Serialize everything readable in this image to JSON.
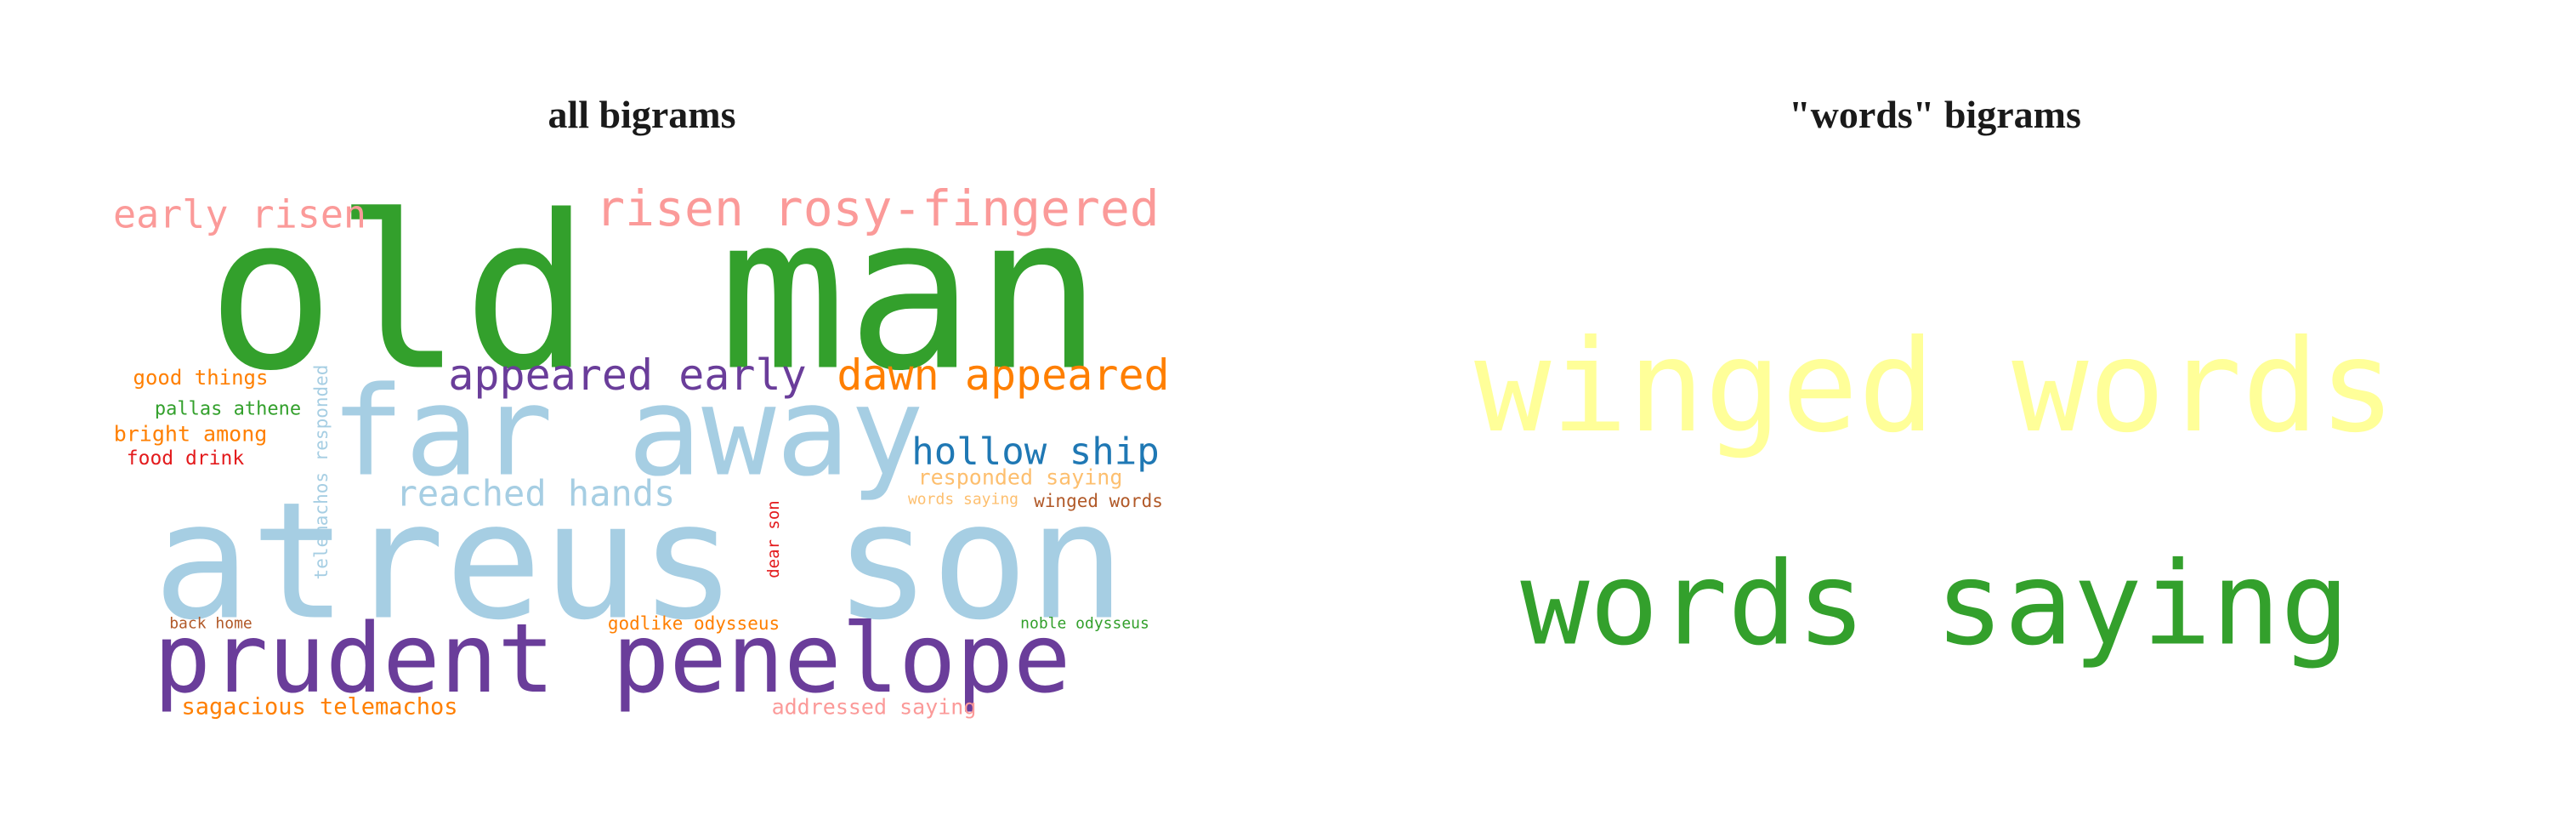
{
  "chart_data": [
    {
      "type": "wordcloud",
      "title": "all bigrams",
      "words": [
        {
          "text": "old man",
          "color": "#33a02c"
        },
        {
          "text": "atreus son",
          "color": "#a6cee3"
        },
        {
          "text": "far away",
          "color": "#a6cee3"
        },
        {
          "text": "prudent penelope",
          "color": "#6a3d9a"
        },
        {
          "text": "risen rosy-fingered",
          "color": "#fb9a99"
        },
        {
          "text": "early risen",
          "color": "#fb9a99"
        },
        {
          "text": "appeared early",
          "color": "#6a3d9a"
        },
        {
          "text": "dawn appeared",
          "color": "#ff7f00"
        },
        {
          "text": "hollow ship",
          "color": "#1f78b4"
        },
        {
          "text": "reached hands",
          "color": "#a6cee3"
        },
        {
          "text": "good things",
          "color": "#ff7f00"
        },
        {
          "text": "pallas athene",
          "color": "#33a02c"
        },
        {
          "text": "bright among",
          "color": "#ff7f00"
        },
        {
          "text": "food drink",
          "color": "#e31a1c"
        },
        {
          "text": "telemachos responded",
          "color": "#a6cee3"
        },
        {
          "text": "responded saying",
          "color": "#fdbf6f"
        },
        {
          "text": "words saying",
          "color": "#fdbf6f"
        },
        {
          "text": "winged words",
          "color": "#b15928"
        },
        {
          "text": "dear son",
          "color": "#e31a1c"
        },
        {
          "text": "back home",
          "color": "#b15928"
        },
        {
          "text": "godlike odysseus",
          "color": "#ff7f00"
        },
        {
          "text": "noble odysseus",
          "color": "#33a02c"
        },
        {
          "text": "sagacious telemachos",
          "color": "#ff7f00"
        },
        {
          "text": "addressed saying",
          "color": "#fb9a99"
        }
      ]
    },
    {
      "type": "wordcloud",
      "title": "\"words\" bigrams",
      "words": [
        {
          "text": "winged words",
          "color": "#ffff99"
        },
        {
          "text": "words saying",
          "color": "#33a02c"
        }
      ]
    }
  ]
}
